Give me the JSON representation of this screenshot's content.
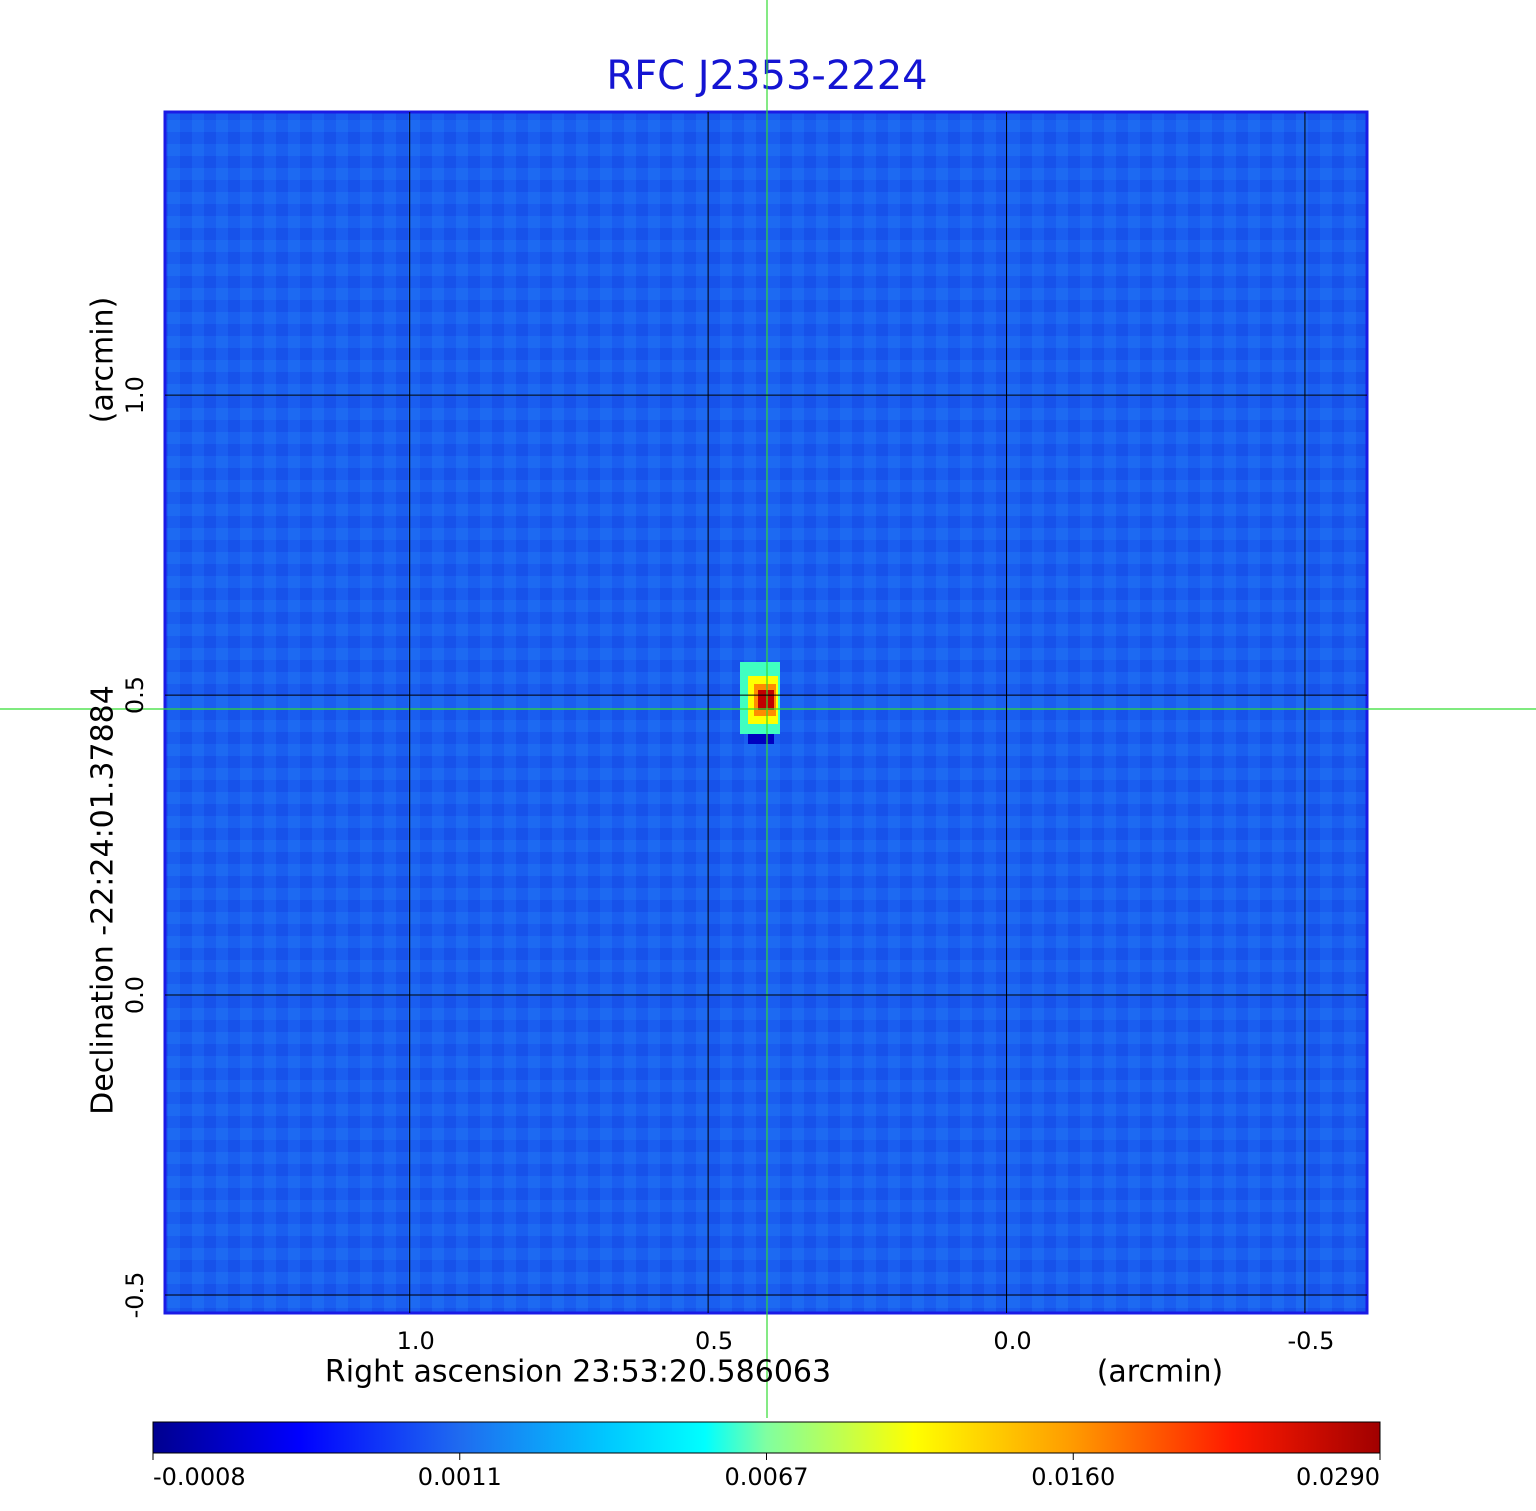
{
  "chart_data": {
    "type": "image",
    "title": "RFC J2353-2224",
    "xlabel": "Right ascension  23:53:20.586063",
    "xunit": "(arcmin)",
    "ylabel": "Declination  -22:24:01.37884",
    "yunit": "(arcmin)",
    "xlim": [
      1.41,
      -0.604
    ],
    "ylim": [
      -0.53,
      1.472
    ],
    "xticks": [
      {
        "value": 1.0,
        "label": "1.0"
      },
      0.5,
      {
        "value": 0.0,
        "label": "0.0"
      },
      -0.5
    ],
    "yticks": [
      -0.5,
      {
        "value": 0.0,
        "label": "0.0"
      },
      0.5,
      {
        "value": 1.0,
        "label": "1.0"
      }
    ],
    "grid": true,
    "colorbar": {
      "colormap": "jet",
      "ticks": [
        -0.0008,
        0.0011,
        0.0067,
        {
          "value": 0.016,
          "label": "0.0160"
        },
        {
          "value": 0.029,
          "label": "0.0290"
        }
      ]
    }
  }
}
